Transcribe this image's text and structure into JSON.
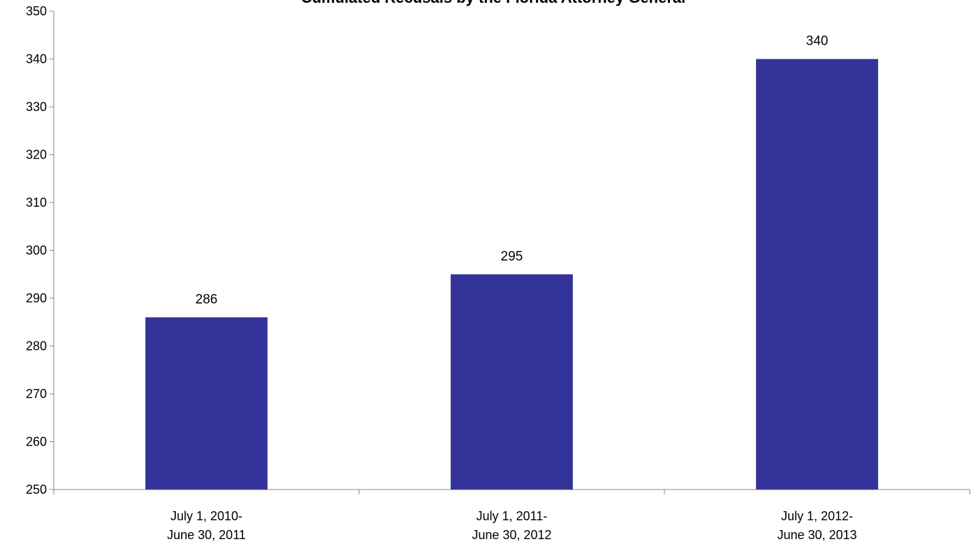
{
  "chart_data": {
    "type": "bar",
    "title": "Cumulated Recusals by the Florida Attorney General",
    "xlabel": "",
    "ylabel": "",
    "ylim": [
      250,
      350
    ],
    "yticks": [
      250,
      260,
      270,
      280,
      290,
      300,
      310,
      320,
      330,
      340,
      350
    ],
    "categories": [
      [
        "July 1, 2010-",
        "June 30, 2011"
      ],
      [
        "July 1, 2011-",
        "June 30, 2012"
      ],
      [
        "July 1, 2012-",
        "June 30, 2013"
      ]
    ],
    "series": [
      {
        "values": [
          286,
          295,
          340
        ]
      }
    ],
    "data_labels": [
      "286",
      "295",
      "340"
    ],
    "bar_color": "#333399",
    "axis_color": "#888888",
    "grid": false,
    "legend": "none"
  }
}
